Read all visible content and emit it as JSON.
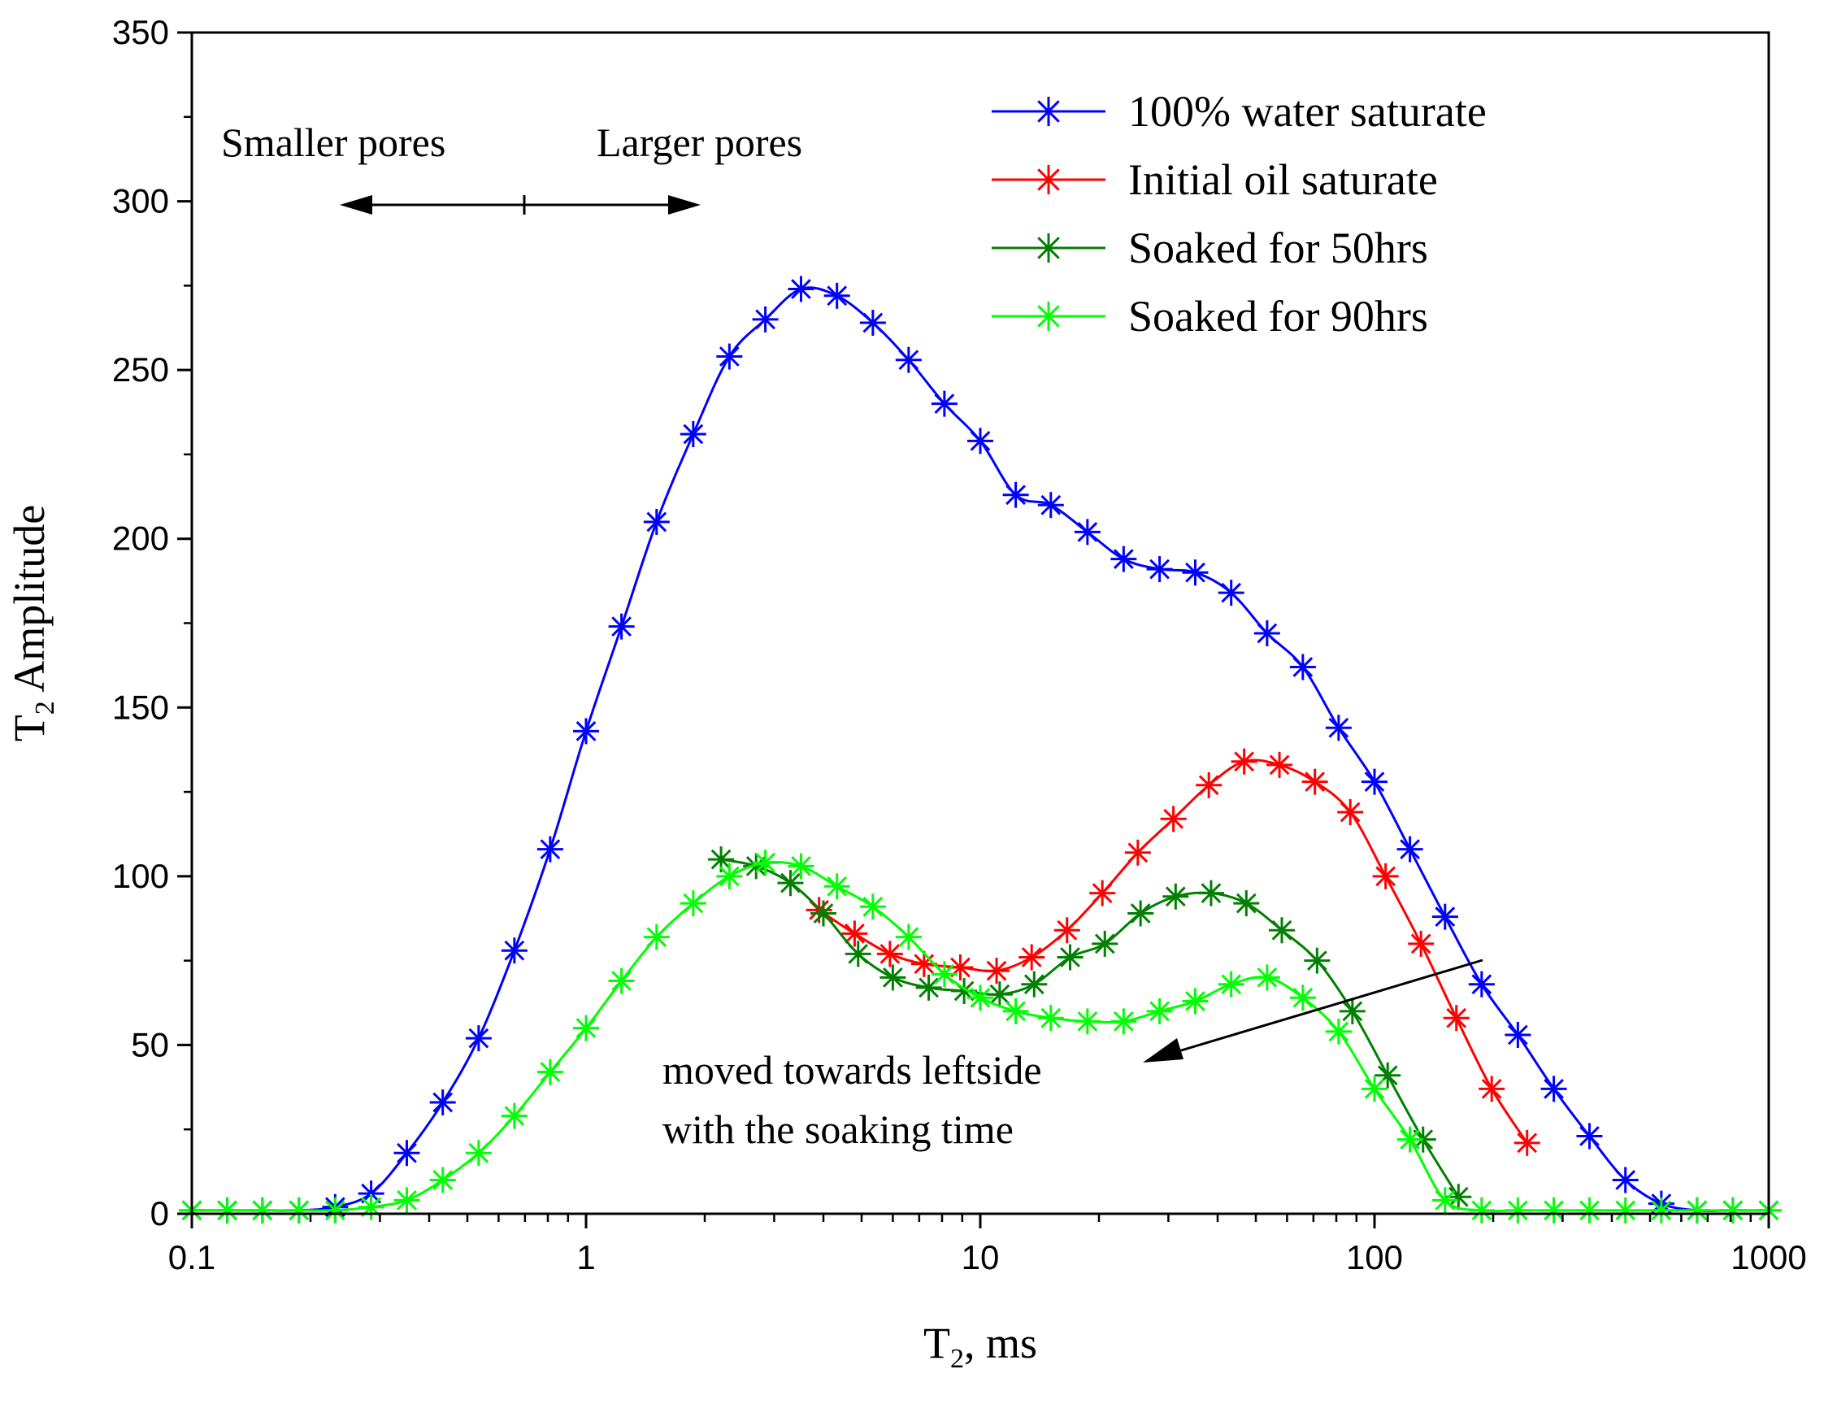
{
  "chart_data": {
    "type": "line",
    "x_scale": "log",
    "xlabel": "T",
    "xlabel_sub": "2",
    "xlabel_suffix": ", ms",
    "ylabel": "T",
    "ylabel_sub": "2",
    "ylabel_suffix": " Amplitude",
    "xlim": [
      0.1,
      1000
    ],
    "ylim": [
      0,
      350
    ],
    "x_ticks": [
      0.1,
      1,
      10,
      100,
      1000
    ],
    "x_tick_labels": [
      "0.1",
      "1",
      "10",
      "100",
      "1000"
    ],
    "y_ticks": [
      0,
      50,
      100,
      150,
      200,
      250,
      300,
      350
    ],
    "y_tick_labels": [
      "0",
      "50",
      "100",
      "150",
      "200",
      "250",
      "300",
      "350"
    ],
    "legend_position": "top-right",
    "series": [
      {
        "name": "100% water saturate",
        "color": "#0000ff",
        "x": [
          0.1,
          0.123,
          0.151,
          0.187,
          0.231,
          0.285,
          0.351,
          0.433,
          0.534,
          0.658,
          0.811,
          1.0,
          1.23,
          1.51,
          1.87,
          2.31,
          2.85,
          3.51,
          4.33,
          5.34,
          6.58,
          8.11,
          10.0,
          12.3,
          15.1,
          18.7,
          23.1,
          28.5,
          35.1,
          43.3,
          53.4,
          65.8,
          81.1,
          100,
          123,
          151,
          187,
          231,
          285,
          351,
          433,
          534,
          658,
          811,
          1000
        ],
        "y": [
          1,
          1,
          1,
          1,
          2,
          6,
          18,
          33,
          52,
          78,
          108,
          143,
          174,
          205,
          231,
          254,
          265,
          274,
          272,
          264,
          253,
          240,
          229,
          213,
          210,
          202,
          194,
          191,
          190,
          184,
          172,
          162,
          144,
          128,
          108,
          88,
          68,
          53,
          37,
          23,
          10,
          3,
          1,
          1,
          1
        ]
      },
      {
        "name": "Initial oil saturate",
        "color": "#ff0000",
        "x": [
          3.9,
          4.8,
          5.9,
          7.2,
          8.9,
          11.0,
          13.5,
          16.6,
          20.4,
          25.1,
          30.9,
          38.0,
          46.7,
          57.4,
          70.6,
          86.8,
          106.7,
          131.2,
          161.3,
          198.3,
          243.8
        ],
        "y": [
          90,
          83,
          77,
          74,
          73,
          72,
          76,
          84,
          95,
          107,
          117,
          127,
          134,
          133,
          128,
          119,
          100,
          80,
          58,
          37,
          21
        ]
      },
      {
        "name": "Soaked for 50hrs",
        "color": "#008000",
        "x": [
          2.2,
          2.7,
          3.3,
          4.0,
          4.9,
          6.0,
          7.4,
          9.1,
          11.2,
          13.7,
          16.9,
          20.7,
          25.5,
          31.3,
          38.5,
          47.3,
          58.2,
          71.5,
          87.9,
          108.0,
          132.8,
          163.3
        ],
        "y": [
          105,
          103,
          98,
          89,
          77,
          70,
          67,
          66,
          65,
          68,
          76,
          80,
          89,
          94,
          95,
          92,
          84,
          75,
          60,
          41,
          22,
          5
        ]
      },
      {
        "name": "Soaked for 90hrs",
        "color": "#00ff00",
        "x": [
          0.1,
          0.123,
          0.151,
          0.187,
          0.231,
          0.285,
          0.351,
          0.433,
          0.534,
          0.658,
          0.811,
          1.0,
          1.23,
          1.51,
          1.87,
          2.31,
          2.85,
          3.51,
          4.33,
          5.34,
          6.58,
          8.11,
          10.0,
          12.3,
          15.1,
          18.7,
          23.1,
          28.5,
          35.1,
          43.3,
          53.4,
          65.8,
          81.1,
          100,
          123,
          151,
          187,
          231,
          285,
          351,
          433,
          534,
          658,
          811,
          1000
        ],
        "y": [
          1,
          1,
          1,
          1,
          1,
          2,
          4,
          10,
          18,
          29,
          42,
          55,
          69,
          82,
          92,
          100,
          104,
          103,
          97,
          91,
          82,
          71,
          64,
          60,
          58,
          57,
          57,
          60,
          63,
          68,
          70,
          64,
          54,
          37,
          22,
          4,
          1,
          1,
          1,
          1,
          1,
          1,
          1,
          1,
          1
        ]
      }
    ],
    "annotations": {
      "smaller_pores": "Smaller pores",
      "larger_pores": "Larger pores",
      "shift_line1": "moved towards leftside",
      "shift_line2": "with the soaking time"
    }
  }
}
